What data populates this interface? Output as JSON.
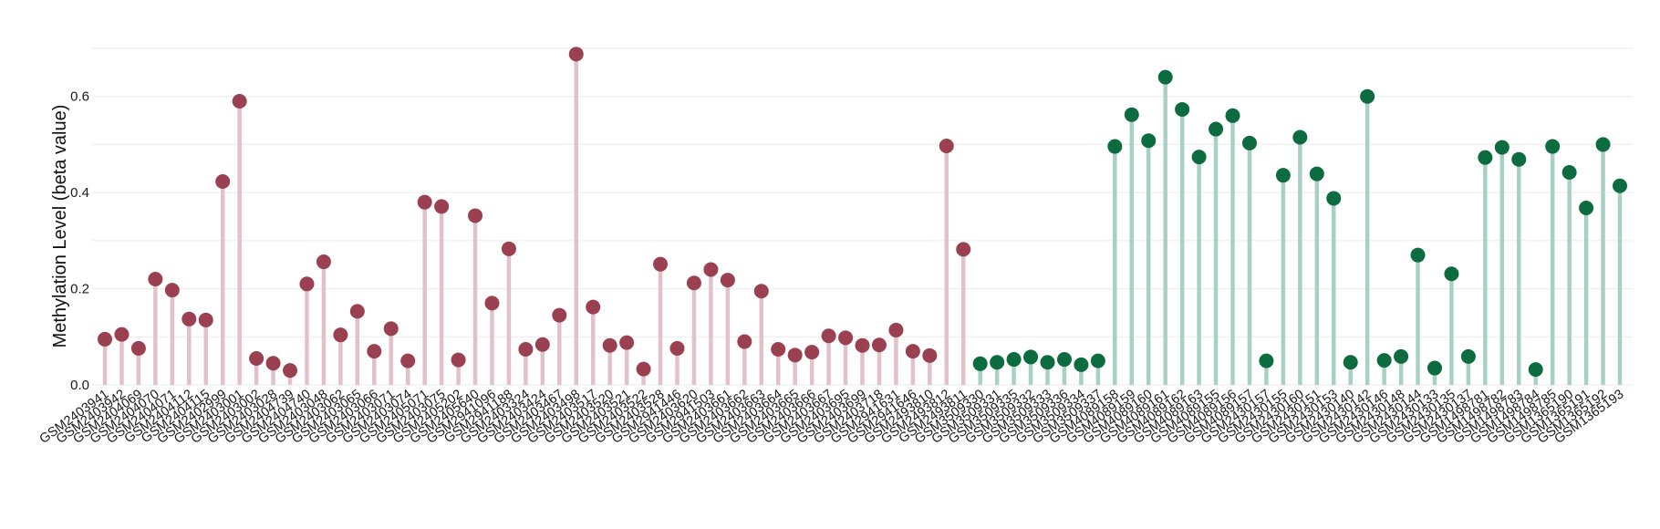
{
  "chart_data": {
    "type": "lollipop",
    "title": "",
    "xlabel": "",
    "ylabel": "Methylation Level (beta value)",
    "ylim": [
      0,
      0.7
    ],
    "yticks": [
      0.0,
      0.2,
      0.4,
      0.6
    ],
    "ytick_labels": [
      "0.0",
      "0.2",
      "0.4",
      "0.6"
    ],
    "grid": "horizontal",
    "colors": {
      "group1_point": "#9b4050",
      "group1_stem": "#e2c2c9",
      "group2_point": "#0d6b40",
      "group2_stem": "#a9d1c3"
    },
    "points": [
      {
        "x": "GSM2403941",
        "y": 0.095,
        "group": 1
      },
      {
        "x": "GSM2403942",
        "y": 0.105,
        "group": 1
      },
      {
        "x": "GSM2404069",
        "y": 0.076,
        "group": 1
      },
      {
        "x": "GSM2404070",
        "y": 0.22,
        "group": 1
      },
      {
        "x": "GSM2404071",
        "y": 0.197,
        "group": 1
      },
      {
        "x": "GSM2404112",
        "y": 0.137,
        "group": 1
      },
      {
        "x": "GSM2404115",
        "y": 0.135,
        "group": 1
      },
      {
        "x": "GSM2402999",
        "y": 0.423,
        "group": 1
      },
      {
        "x": "GSM2403001",
        "y": 0.59,
        "group": 1
      },
      {
        "x": "GSM2403002",
        "y": 0.055,
        "group": 1
      },
      {
        "x": "GSM2403028",
        "y": 0.045,
        "group": 1
      },
      {
        "x": "GSM2404739",
        "y": 0.03,
        "group": 1
      },
      {
        "x": "GSM2404740",
        "y": 0.21,
        "group": 1
      },
      {
        "x": "GSM2403048",
        "y": 0.256,
        "group": 1
      },
      {
        "x": "GSM2403062",
        "y": 0.104,
        "group": 1
      },
      {
        "x": "GSM2403065",
        "y": 0.153,
        "group": 1
      },
      {
        "x": "GSM2403066",
        "y": 0.07,
        "group": 1
      },
      {
        "x": "GSM2403071",
        "y": 0.117,
        "group": 1
      },
      {
        "x": "GSM2403074",
        "y": 0.05,
        "group": 1
      },
      {
        "x": "GSM2405071",
        "y": 0.38,
        "group": 1
      },
      {
        "x": "GSM2403075",
        "y": 0.371,
        "group": 1
      },
      {
        "x": "GSM2405202",
        "y": 0.052,
        "group": 1
      },
      {
        "x": "GSM2405640",
        "y": 0.352,
        "group": 1
      },
      {
        "x": "GSM2941096",
        "y": 0.17,
        "group": 1
      },
      {
        "x": "GSM2941188",
        "y": 0.283,
        "group": 1
      },
      {
        "x": "GSM2403324",
        "y": 0.074,
        "group": 1
      },
      {
        "x": "GSM2403424",
        "y": 0.084,
        "group": 1
      },
      {
        "x": "GSM2403467",
        "y": 0.145,
        "group": 1
      },
      {
        "x": "GSM2403498",
        "y": 0.688,
        "group": 1
      },
      {
        "x": "GSM2403517",
        "y": 0.162,
        "group": 1
      },
      {
        "x": "GSM2403520",
        "y": 0.082,
        "group": 1
      },
      {
        "x": "GSM2403521",
        "y": 0.088,
        "group": 1
      },
      {
        "x": "GSM2403522",
        "y": 0.033,
        "group": 1
      },
      {
        "x": "GSM2403528",
        "y": 0.251,
        "group": 1
      },
      {
        "x": "GSM2941446",
        "y": 0.076,
        "group": 1
      },
      {
        "x": "GSM2403620",
        "y": 0.212,
        "group": 1
      },
      {
        "x": "GSM2941503",
        "y": 0.24,
        "group": 1
      },
      {
        "x": "GSM2403661",
        "y": 0.218,
        "group": 1
      },
      {
        "x": "GSM2403662",
        "y": 0.09,
        "group": 1
      },
      {
        "x": "GSM2403663",
        "y": 0.195,
        "group": 1
      },
      {
        "x": "GSM2403664",
        "y": 0.074,
        "group": 1
      },
      {
        "x": "GSM2403665",
        "y": 0.062,
        "group": 1
      },
      {
        "x": "GSM2403666",
        "y": 0.068,
        "group": 1
      },
      {
        "x": "GSM2403667",
        "y": 0.102,
        "group": 1
      },
      {
        "x": "GSM2403695",
        "y": 0.098,
        "group": 1
      },
      {
        "x": "GSM2403699",
        "y": 0.082,
        "group": 1
      },
      {
        "x": "GSM2403718",
        "y": 0.083,
        "group": 1
      },
      {
        "x": "GSM2941631",
        "y": 0.114,
        "group": 1
      },
      {
        "x": "GSM2941646",
        "y": 0.07,
        "group": 1
      },
      {
        "x": "GSM2493810",
        "y": 0.061,
        "group": 1
      },
      {
        "x": "GSM2493812",
        "y": 0.497,
        "group": 1
      },
      {
        "x": "GSM2493811",
        "y": 0.282,
        "group": 1
      },
      {
        "x": "GSM3509330",
        "y": 0.044,
        "group": 2
      },
      {
        "x": "GSM3509331",
        "y": 0.047,
        "group": 2
      },
      {
        "x": "GSM3509335",
        "y": 0.053,
        "group": 2
      },
      {
        "x": "GSM3509332",
        "y": 0.058,
        "group": 2
      },
      {
        "x": "GSM3509333",
        "y": 0.047,
        "group": 2
      },
      {
        "x": "GSM3509336",
        "y": 0.053,
        "group": 2
      },
      {
        "x": "GSM3509334",
        "y": 0.042,
        "group": 2
      },
      {
        "x": "GSM3509337",
        "y": 0.05,
        "group": 2
      },
      {
        "x": "GSM4089158",
        "y": 0.496,
        "group": 2
      },
      {
        "x": "GSM4089159",
        "y": 0.562,
        "group": 2
      },
      {
        "x": "GSM4089160",
        "y": 0.508,
        "group": 2
      },
      {
        "x": "GSM4089161",
        "y": 0.64,
        "group": 2
      },
      {
        "x": "GSM4089162",
        "y": 0.573,
        "group": 2
      },
      {
        "x": "GSM4089163",
        "y": 0.474,
        "group": 2
      },
      {
        "x": "GSM4089155",
        "y": 0.532,
        "group": 2
      },
      {
        "x": "GSM4089156",
        "y": 0.56,
        "group": 2
      },
      {
        "x": "GSM4089157",
        "y": 0.503,
        "group": 2
      },
      {
        "x": "GSM2430157",
        "y": 0.05,
        "group": 2
      },
      {
        "x": "GSM2430155",
        "y": 0.436,
        "group": 2
      },
      {
        "x": "GSM2430160",
        "y": 0.515,
        "group": 2
      },
      {
        "x": "GSM2430151",
        "y": 0.439,
        "group": 2
      },
      {
        "x": "GSM2430153",
        "y": 0.388,
        "group": 2
      },
      {
        "x": "GSM2430140",
        "y": 0.047,
        "group": 2
      },
      {
        "x": "GSM2430142",
        "y": 0.6,
        "group": 2
      },
      {
        "x": "GSM2430146",
        "y": 0.051,
        "group": 2
      },
      {
        "x": "GSM2430148",
        "y": 0.059,
        "group": 2
      },
      {
        "x": "GSM2430144",
        "y": 0.27,
        "group": 2
      },
      {
        "x": "GSM2430133",
        "y": 0.035,
        "group": 2
      },
      {
        "x": "GSM2430135",
        "y": 0.231,
        "group": 2
      },
      {
        "x": "GSM2430137",
        "y": 0.059,
        "group": 2
      },
      {
        "x": "GSM1498781",
        "y": 0.473,
        "group": 2
      },
      {
        "x": "GSM1498782",
        "y": 0.494,
        "group": 2
      },
      {
        "x": "GSM1498783",
        "y": 0.469,
        "group": 2
      },
      {
        "x": "GSM1498784",
        "y": 0.032,
        "group": 2
      },
      {
        "x": "GSM1498785",
        "y": 0.496,
        "group": 2
      },
      {
        "x": "GSM1365190",
        "y": 0.442,
        "group": 2
      },
      {
        "x": "GSM1365191",
        "y": 0.368,
        "group": 2
      },
      {
        "x": "GSM1365192",
        "y": 0.5,
        "group": 2
      },
      {
        "x": "GSM1365193",
        "y": 0.414,
        "group": 2
      }
    ]
  }
}
